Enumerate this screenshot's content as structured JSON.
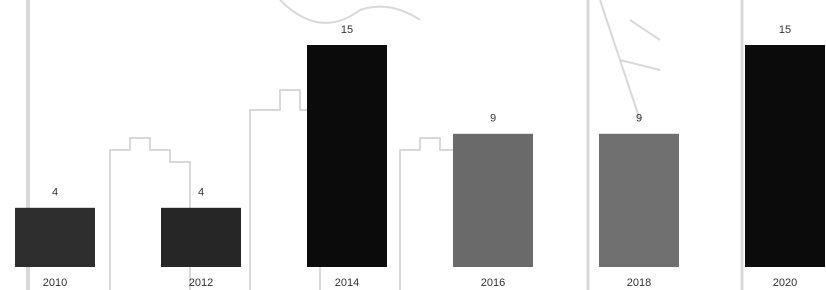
{
  "chart_data": {
    "type": "bar",
    "categories": [
      "2010",
      "2012",
      "2014",
      "2016",
      "2018",
      "2020"
    ],
    "values": [
      4,
      4,
      15,
      9,
      9,
      15
    ],
    "colors": [
      "#2e2e2e",
      "#262626",
      "#0b0b0b",
      "#6a6a6a",
      "#707070",
      "#0b0b0b"
    ]
  }
}
